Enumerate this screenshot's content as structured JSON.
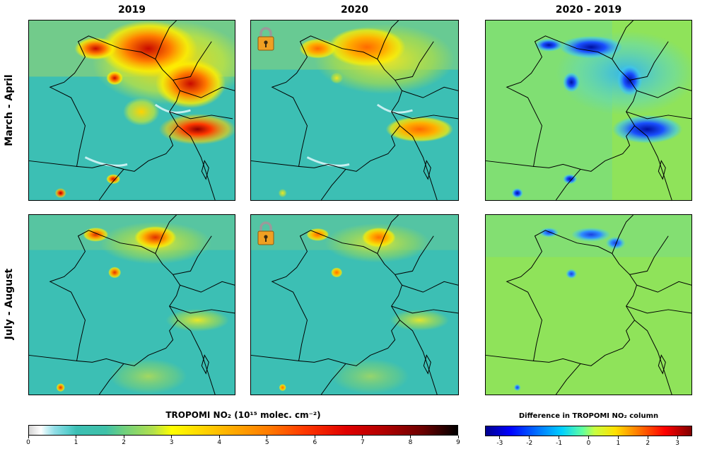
{
  "columns": [
    "2019",
    "2020",
    "2020 - 2019"
  ],
  "rows": [
    "March - April",
    "July - August"
  ],
  "colorbar_main": {
    "title": "TROPOMI NO₂ (10¹⁵ molec. cm⁻²)",
    "ticks": [
      "0",
      "1",
      "2",
      "3",
      "4",
      "5",
      "6",
      "7",
      "8",
      "9"
    ],
    "min": 0,
    "max": 9
  },
  "colorbar_diff": {
    "title": "Difference in TROPOMI NO₂ column",
    "ticks": [
      "-3",
      "-2",
      "-1",
      "0",
      "1",
      "2",
      "3"
    ],
    "min": -3.5,
    "max": 3.5
  },
  "icons": [
    "lock-icon"
  ],
  "colors": {
    "map_background": "#3cbfb4",
    "diff_background": "#8fe35a",
    "border": "#000000",
    "lock_body": "#f0a023"
  },
  "chart_data": {
    "type": "heatmap",
    "title": "",
    "panels": [
      {
        "row": "March - April",
        "column": "2019",
        "scale": "TROPOMI NO₂ (10¹⁵ molec. cm⁻²)"
      },
      {
        "row": "March - April",
        "column": "2020",
        "scale": "TROPOMI NO₂ (10¹⁵ molec. cm⁻²)"
      },
      {
        "row": "March - April",
        "column": "2020 - 2019",
        "scale": "Difference in TROPOMI NO₂ column"
      },
      {
        "row": "July - August",
        "column": "2019",
        "scale": "TROPOMI NO₂ (10¹⁵ molec. cm⁻²)"
      },
      {
        "row": "July - August",
        "column": "2020",
        "scale": "TROPOMI NO₂ (10¹⁵ molec. cm⁻²)"
      },
      {
        "row": "July - August",
        "column": "2020 - 2019",
        "scale": "Difference in TROPOMI NO₂ column"
      }
    ]
  }
}
